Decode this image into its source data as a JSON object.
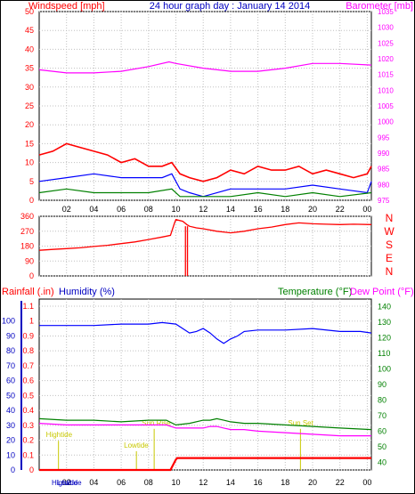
{
  "colors": {
    "wind_label": "#ff0000",
    "title": "#0000c0",
    "barometer": "#ff00ff",
    "wind_avg": "#0000ff",
    "wind_min": "#008000",
    "direction": "#ff0000",
    "rain": "#ff0000",
    "humidity": "#0000ff",
    "temperature": "#008000",
    "dewpoint": "#ff00ff",
    "annotation": "#c8c800",
    "axis_blue": "#0000c0",
    "grid": "#c0c0c0"
  },
  "chart_data": [
    {
      "type": "line",
      "title": "24 hour graph day : January 14 2014",
      "left_label": "Windspeed [mph]",
      "right_label": "Barometer [mb]",
      "x_ticks": [
        "02",
        "04",
        "06",
        "08",
        "10",
        "12",
        "14",
        "16",
        "18",
        "20",
        "22",
        "00"
      ],
      "y_left_ticks": [
        "0",
        "5",
        "10",
        "15",
        "20",
        "25",
        "30",
        "35",
        "40",
        "45",
        "50"
      ],
      "y_left_range": [
        0,
        50
      ],
      "y_right_ticks": [
        "975",
        "980",
        "985",
        "990",
        "995",
        "1000",
        "1005",
        "1010",
        "1015",
        "1020",
        "1025",
        "1030",
        "1035"
      ],
      "y_right_range": [
        975,
        1035
      ],
      "series": [
        {
          "role": "barometer",
          "axis": "right",
          "x": [
            0,
            2,
            4,
            6,
            8,
            9.5,
            10,
            12,
            14,
            16,
            18,
            20,
            22,
            24.3
          ],
          "y": [
            1016.5,
            1015.5,
            1015.5,
            1016,
            1017.5,
            1019,
            1018.5,
            1017,
            1016,
            1016,
            1017,
            1018.5,
            1018.5,
            1018
          ]
        },
        {
          "role": "wind_gust",
          "axis": "left",
          "x": [
            0,
            1,
            2,
            3,
            4,
            5,
            6,
            7,
            8,
            9,
            9.7,
            10.3,
            11,
            12,
            13,
            14,
            15,
            16,
            17,
            18,
            19,
            20,
            21,
            22,
            23,
            24,
            24.3
          ],
          "y": [
            12,
            13,
            15,
            14,
            13,
            12,
            10,
            11,
            9,
            9,
            10,
            7,
            6,
            5,
            6,
            8,
            7,
            9,
            8,
            8,
            9,
            7,
            8,
            7,
            6,
            7,
            9
          ]
        },
        {
          "role": "wind_avg",
          "axis": "left",
          "x": [
            0,
            2,
            4,
            6,
            8,
            9,
            9.7,
            10.3,
            11,
            12,
            14,
            16,
            18,
            20,
            22,
            24,
            24.3
          ],
          "y": [
            5,
            6,
            7,
            6,
            6,
            6,
            7,
            3,
            2,
            1,
            3,
            3,
            3,
            4,
            3,
            2,
            5
          ]
        },
        {
          "role": "wind_min",
          "axis": "left",
          "x": [
            0,
            2,
            4,
            6,
            8,
            9.7,
            10.3,
            12,
            14,
            16,
            18,
            20,
            22,
            24.3
          ],
          "y": [
            2,
            3,
            2,
            2,
            2,
            3,
            1,
            1,
            1,
            2,
            1,
            2,
            1,
            2
          ]
        }
      ]
    },
    {
      "type": "line",
      "y_ticks": [
        "0",
        "90",
        "180",
        "270",
        "360"
      ],
      "y_range": [
        0,
        360
      ],
      "direction_labels": [
        "N",
        "W",
        "S",
        "E",
        "N"
      ],
      "x_ticks": [
        "02",
        "04",
        "06",
        "08",
        "10",
        "12",
        "14",
        "16",
        "18",
        "20",
        "22",
        "00"
      ],
      "series": [
        {
          "role": "wind_direction",
          "x": [
            0,
            1,
            2,
            3,
            4,
            5,
            6,
            7,
            8,
            9,
            9.6,
            9.9,
            10,
            10.5,
            10.8,
            11,
            11.5,
            12,
            13,
            14,
            15,
            16,
            17,
            18,
            19,
            20,
            21,
            22,
            23,
            24.3
          ],
          "y": [
            155,
            160,
            165,
            170,
            178,
            185,
            195,
            205,
            220,
            235,
            245,
            320,
            340,
            330,
            310,
            300,
            290,
            285,
            270,
            260,
            270,
            285,
            295,
            310,
            320,
            315,
            312,
            310,
            312,
            310
          ]
        }
      ]
    },
    {
      "type": "line",
      "labels": {
        "rain": "Rainfall (.in)",
        "humidity": "Humidity (%)",
        "temperature": "Temperature (°F)",
        "dewpoint": "Dew Point (°F)"
      },
      "y_left_ticks": [
        "0",
        "0.1",
        "0.2",
        "0.3",
        "0.4",
        "0.5",
        "0.6",
        "0.7",
        "0.8",
        "0.9",
        "1",
        "1.1"
      ],
      "y_left_range": [
        0,
        1.1
      ],
      "y_hum_ticks": [
        "0",
        "10",
        "20",
        "30",
        "40",
        "50",
        "60",
        "70",
        "80",
        "90",
        "100"
      ],
      "y_right_ticks": [
        "40",
        "50",
        "60",
        "70",
        "80",
        "90",
        "100",
        "110",
        "120",
        "130",
        "140"
      ],
      "y_right_range": [
        35,
        145
      ],
      "x_ticks": [
        "02",
        "04",
        "06",
        "08",
        "10",
        "12",
        "14",
        "16",
        "18",
        "20",
        "22",
        "00"
      ],
      "annotations": [
        {
          "text": "Hightide",
          "x": 0.5,
          "level": 0.22
        },
        {
          "text": "Sun Rise",
          "x": 7.5,
          "level": 0.3
        },
        {
          "text": "Lowtide",
          "x": 6.2,
          "level": 0.15
        },
        {
          "text": "Sun Set",
          "x": 18.2,
          "level": 0.3
        }
      ],
      "bottom_labels": [
        "Hightide",
        "Lowtide"
      ],
      "series": [
        {
          "role": "humidity",
          "x": [
            0,
            2,
            4,
            6,
            8,
            9,
            10,
            10.5,
            11,
            11.5,
            12,
            12.5,
            13,
            13.5,
            14,
            14.5,
            15,
            16,
            18,
            20,
            22,
            23.5,
            24.3
          ],
          "y": [
            97,
            97,
            97,
            98,
            98,
            99,
            98,
            95,
            92,
            93,
            95,
            92,
            88,
            85,
            88,
            90,
            93,
            94,
            94,
            95,
            93,
            93,
            92
          ]
        },
        {
          "role": "temperature",
          "x": [
            0,
            2,
            4,
            6,
            8,
            9.3,
            10,
            11,
            12,
            12.5,
            13,
            13.5,
            14,
            15,
            16,
            18,
            20,
            22,
            24.3
          ],
          "y": [
            68,
            67,
            67,
            66,
            67,
            67,
            64,
            65,
            67,
            67,
            68,
            67,
            66,
            65,
            65,
            64,
            63,
            62,
            61
          ]
        },
        {
          "role": "dewpoint",
          "x": [
            0,
            2,
            4,
            6,
            8,
            9.3,
            10,
            11,
            12,
            12.5,
            13,
            13.5,
            14,
            15,
            16,
            18,
            20,
            22,
            24.3
          ],
          "y": [
            65,
            64,
            64,
            64,
            64,
            64,
            62,
            62,
            62,
            63,
            63,
            62,
            61,
            61,
            60,
            59,
            58,
            57,
            57
          ]
        },
        {
          "role": "rain",
          "x": [
            0,
            9.6,
            10,
            10.1,
            24.3
          ],
          "y": [
            0,
            0,
            0.07,
            0.08,
            0.08
          ]
        }
      ]
    }
  ]
}
